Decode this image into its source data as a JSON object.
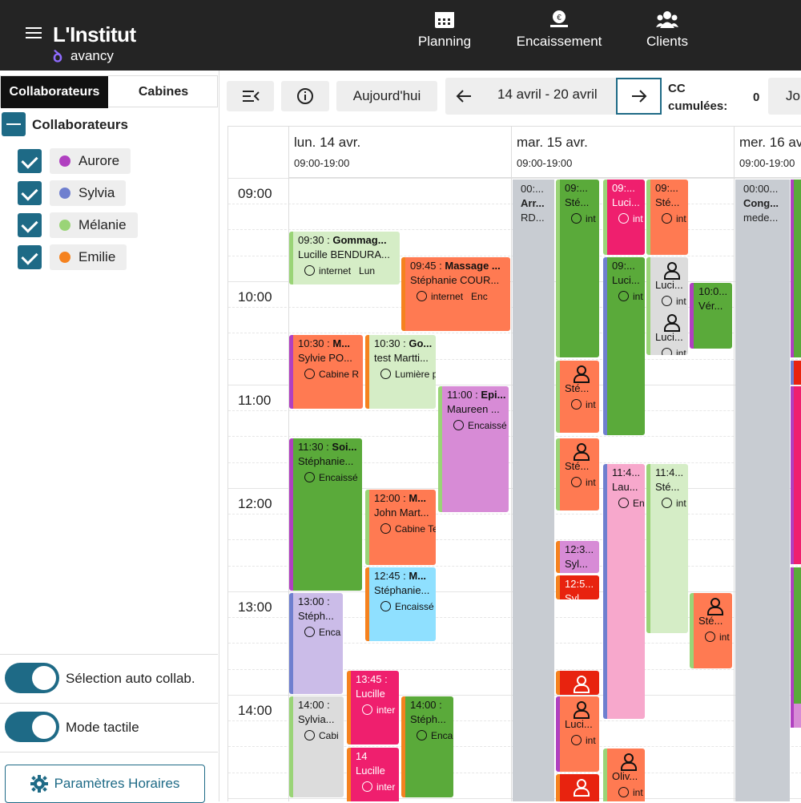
{
  "header": {
    "brand": "L'Institut",
    "brand_sub": "avancy",
    "nav": [
      {
        "label": "Planning",
        "icon": "calendar-icon"
      },
      {
        "label": "Encaissement",
        "icon": "cash-register-icon"
      },
      {
        "label": "Clients",
        "icon": "users-icon"
      }
    ]
  },
  "sidebar": {
    "tabs": [
      "Collaborateurs",
      "Cabines"
    ],
    "group_label": "Collaborateurs",
    "collaborators": [
      {
        "name": "Aurore",
        "color": "#b040c0",
        "checked": true
      },
      {
        "name": "Sylvia",
        "color": "#6f7fcf",
        "checked": true
      },
      {
        "name": "Mélanie",
        "color": "#9ad477",
        "checked": true
      },
      {
        "name": "Emilie",
        "color": "#f5821f",
        "checked": true
      }
    ],
    "toggles": [
      {
        "label": "Sélection auto collab.",
        "on": true
      },
      {
        "label": "Mode tactile",
        "on": true
      }
    ],
    "params_button": "Paramètres Horaires"
  },
  "toolbar": {
    "today": "Aujourd'hui",
    "week_label": "14 avril - 20 avril",
    "cc_label_1": "CC",
    "cc_label_2": "cumulées:",
    "cc_value": "0",
    "jo_label": "Jo"
  },
  "calendar": {
    "days": [
      {
        "name": "lun. 14 avr.",
        "hours": "09:00-19:00"
      },
      {
        "name": "mar. 15 avr.",
        "hours": "09:00-19:00"
      },
      {
        "name": "mer. 16 avr.",
        "hours": "09:00-19:00"
      }
    ],
    "times": [
      "09:00",
      "10:00",
      "11:00",
      "12:00",
      "13:00",
      "14:00"
    ],
    "closed_blocks": [
      {
        "t1": "00:...",
        "t2": "Arr...",
        "t3": "RD..."
      },
      {
        "t1": "00:00...",
        "t2": "Cong...",
        "t3": "mede..."
      }
    ],
    "appointments": [
      {
        "title_time": "09:30 : ",
        "title": "Gommag...",
        "client": "Lucille BENDURA...",
        "tag": "internet",
        "extra": "Lun",
        "bg": "#d5edc6",
        "border": "#9ad477",
        "text": "dark"
      },
      {
        "title_time": "09:45 : ",
        "title": "Massage ...",
        "client": "Stéphanie COUR...",
        "tag": "internet",
        "extra": "Enc",
        "bg": "#ff7a52",
        "border": "#f5821f",
        "text": "dark"
      },
      {
        "title_time": "10:30 : ",
        "title": "M...",
        "client": "Sylvie PO...",
        "tag": "Cabine R",
        "bg": "#ff7a52",
        "border": "#b040c0",
        "text": "dark"
      },
      {
        "title_time": "10:30 : ",
        "title": "Go...",
        "client": "test Martti...",
        "tag": "Lumière p",
        "bg": "#d5edc6",
        "border": "#f5821f",
        "text": "dark"
      },
      {
        "title_time": "11:00 : ",
        "title": "Epi...",
        "client": "Maureen ...",
        "tag": "Encaissé",
        "bg": "#d78bd6",
        "border": "#9ad477",
        "text": "dark"
      },
      {
        "title_time": "11:30 : ",
        "title": "Soi...",
        "client": "Stéphanie...",
        "tag": "Encaissé",
        "bg": "#5aaa3a",
        "border": "#b040c0",
        "text": "dark"
      },
      {
        "title_time": "12:00 : ",
        "title": "M...",
        "client": "John Mart...",
        "tag": "Cabine Te",
        "bg": "#ff7a52",
        "border": "#9ad477",
        "text": "dark"
      },
      {
        "title_time": "12:45 : ",
        "title": "M...",
        "client": "Stéphanie...",
        "tag": "Encaissé",
        "bg": "#8fe0ff",
        "border": "#f5821f",
        "text": "dark"
      },
      {
        "title_time": "13:00 : ",
        "title": "",
        "client": "Stéph...",
        "tag": "Enca",
        "bg": "#cbbce8",
        "border": "#6f7fcf",
        "text": "dark"
      },
      {
        "title_time": "13:45 : ",
        "title": "",
        "client": "Lucille",
        "tag": "inter",
        "bg": "#ef1f6e",
        "border": "#f5821f",
        "text": "light"
      },
      {
        "title_time": "14:00 : ",
        "title": "",
        "client": "Sylvia...",
        "tag": "Cabi",
        "bg": "#dcdcdc",
        "border": "#9ad477",
        "text": "dark"
      },
      {
        "title_time": "14:00 : ",
        "title": "",
        "client": "Stéph...",
        "tag": "Enca",
        "bg": "#5aaa3a",
        "border": "#f5821f",
        "text": "dark"
      },
      {
        "title_time": "14",
        "title": "",
        "client": "Lucille",
        "tag": "inter",
        "bg": "#ef1f6e",
        "border": "#f5821f",
        "text": "light"
      },
      {
        "title_time": "09:...",
        "title": "",
        "client": "Sté...",
        "tag": "int",
        "bg": "#5aaa3a",
        "border": "#9ad477",
        "text": "dark"
      },
      {
        "title_time": "09:...",
        "title": "",
        "client": "Luci...",
        "tag": "int",
        "bg": "#ef1f6e",
        "border": "#9ad477",
        "text": "light"
      },
      {
        "title_time": "09:...",
        "title": "",
        "client": "Sté...",
        "tag": "int",
        "bg": "#ff7a52",
        "border": "#9ad477",
        "text": "dark"
      },
      {
        "title_time": "09:...",
        "title": "",
        "client": "Luci...",
        "tag": "int",
        "bg": "#5aaa3a",
        "border": "#6f7fcf",
        "text": "dark"
      },
      {
        "title_time": "",
        "title": "",
        "client": "Luci...",
        "tag": "int",
        "bg": "#dcdcdc",
        "border": "#9ad477",
        "text": "dark"
      },
      {
        "title_time": "",
        "title": "",
        "client": "Luci...",
        "tag": "int",
        "bg": "#dcdcdc",
        "border": "#9ad477",
        "text": "dark"
      },
      {
        "title_time": "10:0...",
        "title": "",
        "client": "Vér...",
        "tag": "",
        "bg": "#5aaa3a",
        "border": "#b040c0",
        "text": "dark"
      },
      {
        "title_time": "",
        "title": "",
        "client": "Sté...",
        "tag": "int",
        "bg": "#ff7a52",
        "border": "#9ad477",
        "text": "dark"
      },
      {
        "title_time": "",
        "title": "",
        "client": "Sté...",
        "tag": "int",
        "bg": "#ff7a52",
        "border": "#9ad477",
        "text": "dark"
      },
      {
        "title_time": "11:4...",
        "title": "",
        "client": "Lau...",
        "tag": "En",
        "bg": "#f7a8cc",
        "border": "#6f7fcf",
        "text": "dark"
      },
      {
        "title_time": "11:4...",
        "title": "",
        "client": "Sté...",
        "tag": "int",
        "bg": "#d5edc6",
        "border": "#9ad477",
        "text": "dark"
      },
      {
        "title_time": "12:3...",
        "title": "",
        "client": "Syl...",
        "tag": "",
        "bg": "#d78bd6",
        "border": "#f5821f",
        "text": "dark"
      },
      {
        "title_time": "12:5...",
        "title": "",
        "client": "Syl",
        "tag": "",
        "bg": "#e8230f",
        "border": "#f5821f",
        "text": "light"
      },
      {
        "title_time": "",
        "title": "",
        "client": "Sté...",
        "tag": "int",
        "bg": "#ff7a52",
        "border": "#9ad477",
        "text": "dark"
      },
      {
        "title_time": "",
        "title": "",
        "client": "",
        "tag": "",
        "bg": "#e8230f",
        "border": "#f5821f",
        "text": "light"
      },
      {
        "title_time": "",
        "title": "",
        "client": "Luci...",
        "tag": "int",
        "bg": "#ff7a52",
        "border": "#b040c0",
        "text": "dark"
      },
      {
        "title_time": "",
        "title": "",
        "client": "Oliv...",
        "tag": "int",
        "bg": "#ff7a52",
        "border": "#9ad477",
        "text": "dark"
      },
      {
        "title_time": "",
        "title": "",
        "client": "",
        "tag": "",
        "bg": "#e8230f",
        "border": "#f5821f",
        "text": "light"
      }
    ]
  }
}
